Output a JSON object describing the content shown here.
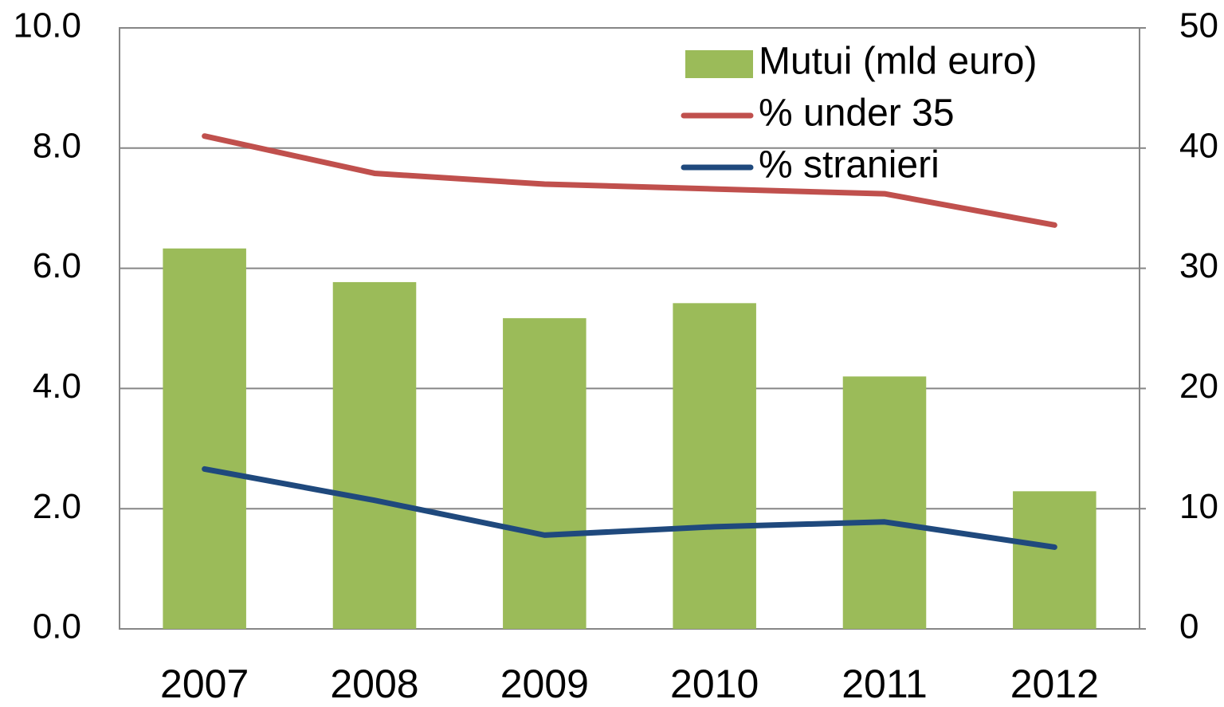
{
  "chart_data": {
    "type": "bar",
    "categories": [
      "2007",
      "2008",
      "2009",
      "2010",
      "2011",
      "2012"
    ],
    "series": [
      {
        "name": "Mutui (mld euro)",
        "type": "bar",
        "color": "#9bbb59",
        "values": [
          6.33,
          5.77,
          5.17,
          5.42,
          4.2,
          2.29
        ]
      },
      {
        "name": "% under 35",
        "type": "line",
        "axis": "y2",
        "color": "#c0504d",
        "values": [
          41.0,
          37.9,
          37.0,
          36.6,
          36.2,
          33.6
        ]
      },
      {
        "name": "% stranieri",
        "type": "line",
        "axis": "y2",
        "color": "#1f497d",
        "values": [
          13.3,
          10.7,
          7.8,
          8.5,
          8.9,
          6.8
        ]
      }
    ],
    "ylim": [
      0,
      10
    ],
    "yticks": [
      {
        "value": 0,
        "label": "0.0"
      },
      {
        "value": 2,
        "label": "2.0"
      },
      {
        "value": 4,
        "label": "4.0"
      },
      {
        "value": 6,
        "label": "6.0"
      },
      {
        "value": 8,
        "label": "8.0"
      },
      {
        "value": 10,
        "label": "10.0"
      }
    ],
    "y2lim": [
      0,
      50
    ],
    "y2ticks": [
      0,
      10,
      20,
      30,
      40,
      50
    ],
    "grid": true,
    "legend": "upper right"
  }
}
